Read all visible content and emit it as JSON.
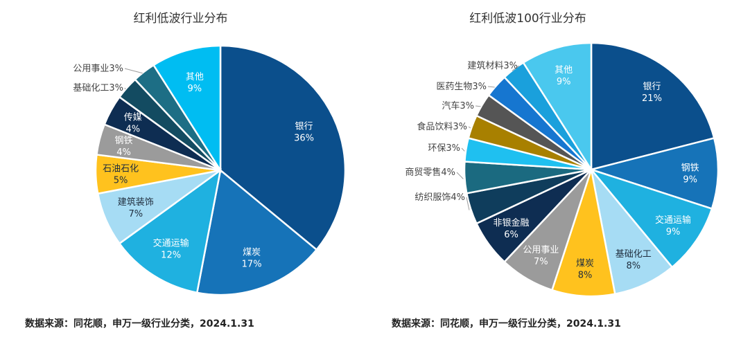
{
  "footer": {
    "left_source": "数据来源：同花顺，申万一级行业分类，2024.1.31",
    "right_source": "数据来源：同花顺，申万一级行业分类，2024.1.31"
  },
  "chart_data": [
    {
      "type": "pie",
      "title": "红利低波行业分布",
      "categories": [
        "银行",
        "煤炭",
        "交通运输",
        "建筑装饰",
        "石油石化",
        "钢铁",
        "传媒",
        "基础化工",
        "公用事业",
        "其他"
      ],
      "values": [
        36,
        17,
        12,
        7,
        5,
        4,
        4,
        3,
        3,
        9
      ],
      "labels": [
        "36%",
        "17%",
        "12%",
        "7%",
        "5%",
        "4%",
        "4%",
        "3%",
        "3%",
        "9%"
      ],
      "colors": [
        "#0b4f8c",
        "#1673b8",
        "#1fb1e0",
        "#a6dcf4",
        "#ffc21e",
        "#9b9b9b",
        "#0e2d52",
        "#134b61",
        "#1d6e85",
        "#00bdf2"
      ]
    },
    {
      "type": "pie",
      "title": "红利低波100行业分布",
      "categories": [
        "银行",
        "钢铁",
        "交通运输",
        "基础化工",
        "煤炭",
        "公用事业",
        "非银金融",
        "纺织服饰",
        "商贸零售",
        "环保",
        "食品饮料",
        "汽车",
        "医药生物",
        "建筑材料",
        "其他"
      ],
      "values": [
        21,
        9,
        9,
        8,
        8,
        7,
        6,
        4,
        4,
        3,
        3,
        3,
        3,
        3,
        9
      ],
      "labels": [
        "21%",
        "9%",
        "9%",
        "8%",
        "8%",
        "7%",
        "6%",
        "4%",
        "4%",
        "3%",
        "3%",
        "3%",
        "3%",
        "3%",
        "9%"
      ],
      "colors": [
        "#0b4f8c",
        "#1673b8",
        "#1fb1e0",
        "#a6dcf4",
        "#ffc21e",
        "#9b9b9b",
        "#0e2d52",
        "#0f3d5c",
        "#1b6a80",
        "#1fc0f0",
        "#a88000",
        "#555555",
        "#1676d0",
        "#1aa0dc",
        "#4ac8ee"
      ]
    }
  ]
}
